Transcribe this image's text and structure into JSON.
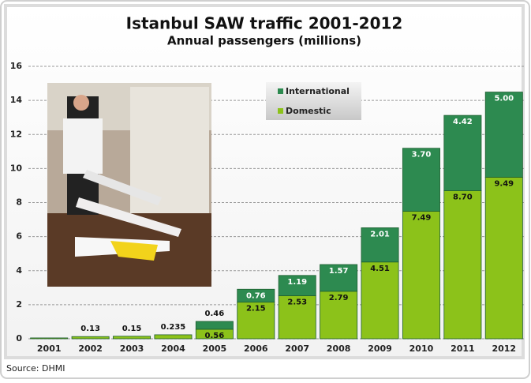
{
  "chart_data": {
    "type": "stacked-bar",
    "title": "Istanbul SAW traffic 2001-2012",
    "subtitle": "Annual passengers (millions)",
    "categories": [
      "2001",
      "2002",
      "2003",
      "2004",
      "2005",
      "2006",
      "2007",
      "2008",
      "2009",
      "2010",
      "2011",
      "2012"
    ],
    "series": [
      {
        "name": "Domestic",
        "color": "#8cc21a",
        "values": [
          0.05,
          0.13,
          0.15,
          0.235,
          0.56,
          2.15,
          2.53,
          2.79,
          4.51,
          7.49,
          8.7,
          9.49
        ],
        "value_labels": [
          null,
          "0.13",
          "0.15",
          "0.235",
          "0.56",
          "2.15",
          "2.53",
          "2.79",
          "4.51",
          "7.49",
          "8.70",
          "9.49"
        ]
      },
      {
        "name": "International",
        "color": "#2d8a50",
        "values": [
          null,
          null,
          null,
          null,
          0.46,
          0.76,
          1.19,
          1.57,
          2.01,
          3.7,
          4.42,
          5.0
        ],
        "value_labels": [
          null,
          null,
          null,
          null,
          "0.46",
          "0.76",
          "1.19",
          "1.57",
          "2.01",
          "3.70",
          "4.42",
          "5.00"
        ]
      }
    ],
    "ylim": [
      0,
      16
    ],
    "yticks": [
      0,
      2,
      4,
      6,
      8,
      10,
      12,
      14,
      16
    ],
    "grid": true,
    "source": "Source: DHMI"
  }
}
